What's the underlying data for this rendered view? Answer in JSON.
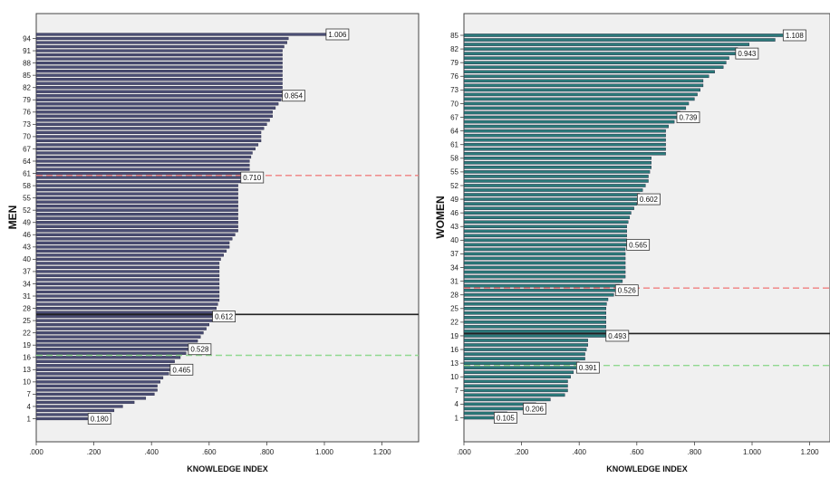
{
  "chart_data": [
    {
      "type": "bar",
      "orientation": "horizontal",
      "ylabel": "MEN",
      "xlabel": "KNOWLEDGE INDEX",
      "xlim": [
        0,
        1.3
      ],
      "x_ticks": [
        0,
        0.2,
        0.4,
        0.6,
        0.8,
        1.0,
        1.2
      ],
      "x_tick_labels": [
        ".000",
        ".200",
        ".400",
        ".600",
        ".800",
        "1.000",
        "1.200"
      ],
      "y_tick_labels": [
        "1",
        "4",
        "7",
        "10",
        "13",
        "16",
        "19",
        "22",
        "25",
        "28",
        "31",
        "34",
        "37",
        "40",
        "43",
        "46",
        "49",
        "52",
        "55",
        "58",
        "61",
        "64",
        "67",
        "70",
        "73",
        "76",
        "79",
        "82",
        "85",
        "88",
        "91",
        "94"
      ],
      "categories_count": 95,
      "bar_color": "#4b4e74",
      "values": [
        0.18,
        0.2,
        0.27,
        0.3,
        0.34,
        0.38,
        0.41,
        0.42,
        0.42,
        0.43,
        0.44,
        0.46,
        0.465,
        0.47,
        0.48,
        0.5,
        0.52,
        0.528,
        0.54,
        0.56,
        0.57,
        0.58,
        0.59,
        0.6,
        0.61,
        0.612,
        0.62,
        0.625,
        0.63,
        0.635,
        0.635,
        0.635,
        0.635,
        0.635,
        0.635,
        0.635,
        0.635,
        0.635,
        0.635,
        0.64,
        0.65,
        0.66,
        0.67,
        0.67,
        0.68,
        0.69,
        0.7,
        0.7,
        0.7,
        0.7,
        0.7,
        0.7,
        0.7,
        0.7,
        0.7,
        0.7,
        0.7,
        0.7,
        0.71,
        0.71,
        0.73,
        0.74,
        0.74,
        0.74,
        0.745,
        0.75,
        0.76,
        0.77,
        0.78,
        0.78,
        0.78,
        0.79,
        0.8,
        0.81,
        0.82,
        0.82,
        0.83,
        0.84,
        0.85,
        0.854,
        0.854,
        0.854,
        0.854,
        0.854,
        0.854,
        0.854,
        0.854,
        0.854,
        0.854,
        0.854,
        0.854,
        0.86,
        0.87,
        0.875,
        1.006
      ],
      "annotations": [
        {
          "label": "0.180",
          "category": 1,
          "value": 0.18
        },
        {
          "label": "0.465",
          "category": 13,
          "value": 0.465
        },
        {
          "label": "0.528",
          "category": 18,
          "value": 0.528
        },
        {
          "label": "0.612",
          "category": 26,
          "value": 0.612
        },
        {
          "label": "0.710",
          "category": 60,
          "value": 0.71
        },
        {
          "label": "0.854",
          "category": 80,
          "value": 0.854
        },
        {
          "label": "1.006",
          "category": 95,
          "value": 1.006
        }
      ],
      "reference_lines": [
        {
          "category": 60.5,
          "color": "#f08080",
          "style": "dashed"
        },
        {
          "category": 26.5,
          "color": "#222222",
          "style": "solid"
        },
        {
          "category": 16.5,
          "color": "#90d890",
          "style": "dashed"
        }
      ]
    },
    {
      "type": "bar",
      "orientation": "horizontal",
      "ylabel": "WOMEN",
      "xlabel": "KNOWLEDGE INDEX",
      "xlim": [
        0,
        1.3
      ],
      "x_ticks": [
        0,
        0.2,
        0.4,
        0.6,
        0.8,
        1.0,
        1.2
      ],
      "x_tick_labels": [
        ".000",
        ".200",
        ".400",
        ".600",
        ".800",
        "1.000",
        "1.200"
      ],
      "y_tick_labels": [
        "1",
        "4",
        "7",
        "10",
        "13",
        "16",
        "19",
        "22",
        "25",
        "28",
        "31",
        "34",
        "37",
        "40",
        "43",
        "46",
        "49",
        "52",
        "55",
        "58",
        "61",
        "64",
        "67",
        "70",
        "73",
        "76",
        "79",
        "82",
        "85"
      ],
      "categories_count": 85,
      "bar_color": "#2b7a7a",
      "values": [
        0.105,
        0.15,
        0.206,
        0.25,
        0.3,
        0.35,
        0.36,
        0.36,
        0.36,
        0.37,
        0.38,
        0.391,
        0.4,
        0.42,
        0.42,
        0.425,
        0.43,
        0.43,
        0.493,
        0.493,
        0.493,
        0.493,
        0.493,
        0.493,
        0.493,
        0.495,
        0.5,
        0.52,
        0.526,
        0.54,
        0.55,
        0.56,
        0.56,
        0.56,
        0.56,
        0.56,
        0.56,
        0.56,
        0.565,
        0.565,
        0.565,
        0.565,
        0.565,
        0.57,
        0.575,
        0.58,
        0.59,
        0.6,
        0.602,
        0.61,
        0.62,
        0.63,
        0.64,
        0.64,
        0.645,
        0.65,
        0.65,
        0.65,
        0.7,
        0.7,
        0.7,
        0.7,
        0.7,
        0.7,
        0.71,
        0.73,
        0.739,
        0.75,
        0.77,
        0.78,
        0.8,
        0.81,
        0.82,
        0.83,
        0.83,
        0.85,
        0.87,
        0.9,
        0.91,
        0.92,
        0.943,
        0.95,
        0.99,
        1.08,
        1.108
      ],
      "annotations": [
        {
          "label": "0.105",
          "category": 1,
          "value": 0.105
        },
        {
          "label": "0.206",
          "category": 3,
          "value": 0.206
        },
        {
          "label": "0.391",
          "category": 12,
          "value": 0.391
        },
        {
          "label": "0.493",
          "category": 19,
          "value": 0.493
        },
        {
          "label": "0.526",
          "category": 29,
          "value": 0.526
        },
        {
          "label": "0.565",
          "category": 39,
          "value": 0.565
        },
        {
          "label": "0.602",
          "category": 49,
          "value": 0.602
        },
        {
          "label": "0.739",
          "category": 67,
          "value": 0.739
        },
        {
          "label": "0.943",
          "category": 81,
          "value": 0.943
        },
        {
          "label": "1.108",
          "category": 85,
          "value": 1.108
        }
      ],
      "reference_lines": [
        {
          "category": 29.5,
          "color": "#f08080",
          "style": "dashed"
        },
        {
          "category": 19.5,
          "color": "#222222",
          "style": "solid"
        },
        {
          "category": 12.5,
          "color": "#90d890",
          "style": "dashed"
        }
      ]
    }
  ]
}
